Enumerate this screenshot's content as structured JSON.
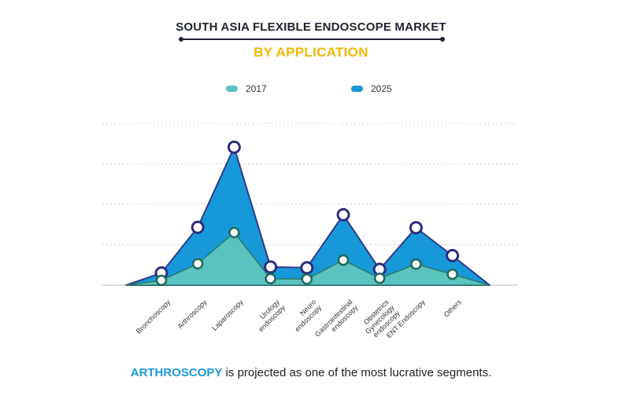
{
  "header": {
    "title": "SOUTH ASIA FLEXIBLE ENDOSCOPE MARKET",
    "subtitle": "BY APPLICATION"
  },
  "footer": {
    "highlight": "ARTHROSCOPY",
    "text": " is projected as one of the most lucrative segments."
  },
  "colors": {
    "series_2017": "#5ac3c0",
    "series_2025": "#1798d8",
    "outline": "#2e3a8c",
    "marker_2017": "#1f6b5a",
    "marker_2025": "#2b2d7d",
    "grid": "#cccccc",
    "title": "#1f2233",
    "subtitle": "#f0b800",
    "highlight": "#1b9ad6"
  },
  "chart_data": {
    "type": "area",
    "categories": [
      "Bronchoscopy",
      "Arthroscopy",
      "Laparoscopy",
      "Urology endoscopy",
      "Neuro endoscopy",
      "Gastrointestinal endoscopy",
      "Obstetrics Gynecology endoscopy",
      "ENT Endoscopy",
      "Others"
    ],
    "category_labels": [
      [
        "Bronchoscopy"
      ],
      [
        "Arthroscopy"
      ],
      [
        "Laparoscopy"
      ],
      [
        "Urology",
        "endoscopy"
      ],
      [
        "Neuro",
        "endoscopy"
      ],
      [
        "Gastrointestinal",
        "endoscopy"
      ],
      [
        "Obstetrics",
        "Gynecology",
        "endoscopy"
      ],
      [
        "ENT Endoscopy"
      ],
      [
        "Others"
      ]
    ],
    "series": [
      {
        "name": "2017",
        "values": [
          1.2,
          5.3,
          13.0,
          1.6,
          1.5,
          6.2,
          1.7,
          5.2,
          2.7
        ]
      },
      {
        "name": "2025",
        "values": [
          3.0,
          14.3,
          34.1,
          4.5,
          4.3,
          17.4,
          3.9,
          14.2,
          7.3
        ]
      }
    ],
    "ylim": [
      0,
      40
    ],
    "grid": true,
    "legend_position": "top-center"
  }
}
